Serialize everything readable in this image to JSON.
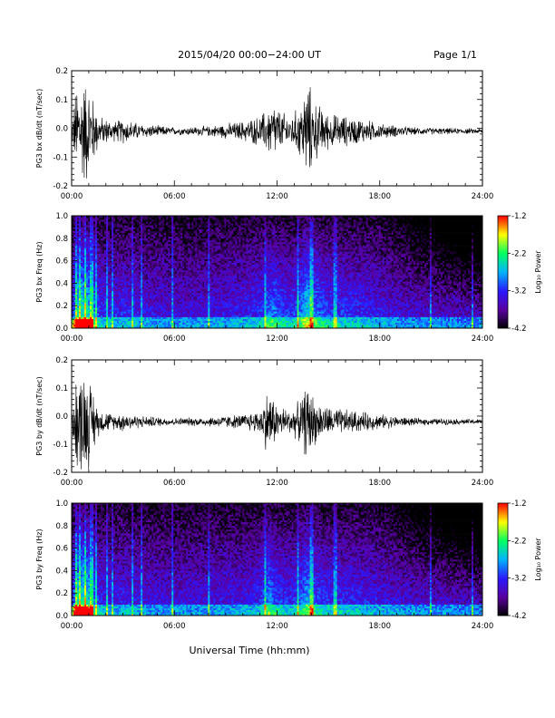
{
  "header": {
    "title": "2015/04/20  00:00−24:00 UT",
    "page": "Page 1/1"
  },
  "xaxis": {
    "label": "Universal Time (hh:mm)",
    "ticks": [
      "00:00",
      "06:00",
      "12:00",
      "18:00",
      "24:00"
    ],
    "range_hours": [
      0,
      24
    ]
  },
  "colorbar": {
    "ticks": [
      "-1.2",
      "-2.2",
      "-3.2",
      "-4.2"
    ],
    "tick_values": [
      -1.2,
      -2.2,
      -3.2,
      -4.2
    ],
    "range": [
      -4.2,
      -1.2
    ],
    "label": "Log₁₀ Power",
    "colors": [
      "#000000",
      "#5a00a0",
      "#2a18ff",
      "#00b4ff",
      "#00ff60",
      "#ffff00",
      "#ff0000"
    ]
  },
  "chart_data": [
    {
      "type": "line",
      "ylabel": "PG3 bx dB/dt (nT/sec)",
      "ylim": [
        -0.2,
        0.2
      ],
      "yticks": [
        "0.2",
        "0.1",
        "0.0",
        "-0.1",
        "-0.2"
      ],
      "ytick_values": [
        0.2,
        0.1,
        0.0,
        -0.1,
        -0.2
      ],
      "baseline": -0.01,
      "envelope": [
        [
          0,
          0.03
        ],
        [
          0.3,
          0.2
        ],
        [
          0.8,
          0.22
        ],
        [
          1.2,
          0.15
        ],
        [
          1.6,
          0.06
        ],
        [
          2.5,
          0.04
        ],
        [
          3,
          0.05
        ],
        [
          4,
          0.03
        ],
        [
          6,
          0.015
        ],
        [
          8,
          0.02
        ],
        [
          10,
          0.04
        ],
        [
          11,
          0.06
        ],
        [
          11.8,
          0.12
        ],
        [
          12.2,
          0.08
        ],
        [
          12.8,
          0.06
        ],
        [
          13.3,
          0.1
        ],
        [
          13.8,
          0.2
        ],
        [
          14.2,
          0.12
        ],
        [
          15,
          0.07
        ],
        [
          16,
          0.06
        ],
        [
          17,
          0.05
        ],
        [
          18,
          0.03
        ],
        [
          20,
          0.015
        ],
        [
          24,
          0.01
        ]
      ]
    },
    {
      "type": "heatmap",
      "ylabel": "PG3 bx Freq (Hz)",
      "ylim": [
        0,
        1
      ],
      "yticks": [
        "1.0",
        "0.8",
        "0.6",
        "0.4",
        "0.2",
        "0.0"
      ],
      "ytick_values": [
        1.0,
        0.8,
        0.6,
        0.4,
        0.2,
        0.0
      ],
      "zlim": [
        -4.2,
        -1.2
      ]
    },
    {
      "type": "line",
      "ylabel": "PG3 by dB/dt (nT/sec)",
      "ylim": [
        -0.2,
        0.2
      ],
      "yticks": [
        "0.2",
        "0.1",
        "0.0",
        "-0.1",
        "-0.2"
      ],
      "ytick_values": [
        0.2,
        0.1,
        0.0,
        -0.1,
        -0.2
      ],
      "baseline": -0.02,
      "envelope": [
        [
          0,
          0.03
        ],
        [
          0.3,
          0.2
        ],
        [
          0.8,
          0.22
        ],
        [
          1.2,
          0.14
        ],
        [
          1.6,
          0.05
        ],
        [
          2.5,
          0.03
        ],
        [
          3,
          0.04
        ],
        [
          4,
          0.025
        ],
        [
          6,
          0.015
        ],
        [
          8,
          0.02
        ],
        [
          10,
          0.03
        ],
        [
          11,
          0.05
        ],
        [
          11.5,
          0.14
        ],
        [
          12,
          0.07
        ],
        [
          12.8,
          0.05
        ],
        [
          13.3,
          0.08
        ],
        [
          13.8,
          0.16
        ],
        [
          14.3,
          0.08
        ],
        [
          15,
          0.06
        ],
        [
          16,
          0.05
        ],
        [
          17,
          0.04
        ],
        [
          18,
          0.03
        ],
        [
          20,
          0.015
        ],
        [
          24,
          0.01
        ]
      ]
    },
    {
      "type": "heatmap",
      "ylabel": "PG3 by Freq (Hz)",
      "ylim": [
        0,
        1
      ],
      "yticks": [
        "1.0",
        "0.8",
        "0.6",
        "0.4",
        "0.2",
        "0.0"
      ],
      "ytick_values": [
        1.0,
        0.8,
        0.6,
        0.4,
        0.2,
        0.0
      ],
      "zlim": [
        -4.2,
        -1.2
      ]
    }
  ]
}
